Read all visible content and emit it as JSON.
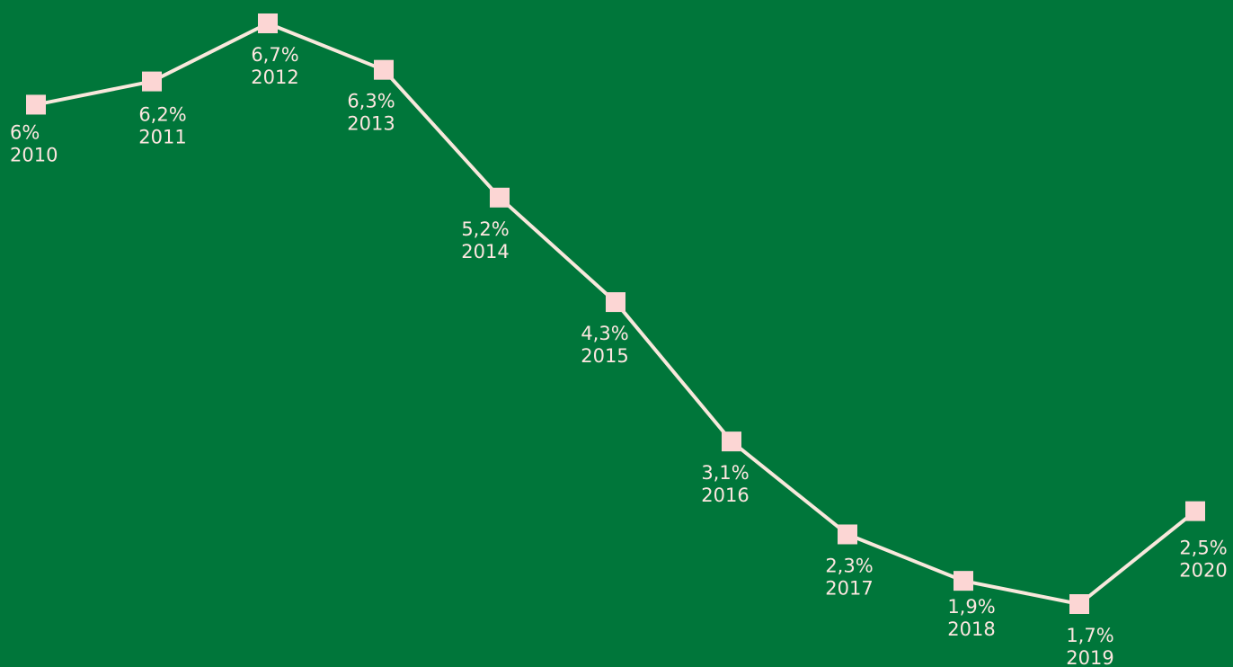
{
  "colors": {
    "background": "#00763a",
    "line": "#f8e8dc",
    "marker": "#fcd6d4",
    "text": "#fde6e0"
  },
  "chart_data": {
    "type": "line",
    "title": "",
    "xlabel": "",
    "ylabel": "",
    "grid": false,
    "legend": "none",
    "x": [
      "2010",
      "2011",
      "2012",
      "2013",
      "2014",
      "2015",
      "2016",
      "2017",
      "2018",
      "2019",
      "2020"
    ],
    "series": [
      {
        "values": [
          6,
          6.2,
          6.7,
          6.3,
          5.2,
          4.3,
          3.1,
          2.3,
          1.9,
          1.7,
          2.5
        ],
        "labels": [
          "6%",
          "6,2%",
          "6,7%",
          "6,3%",
          "5,2%",
          "4,3%",
          "3,1%",
          "2,3%",
          "1,9%",
          "1,7%",
          "2,5%"
        ]
      }
    ]
  }
}
